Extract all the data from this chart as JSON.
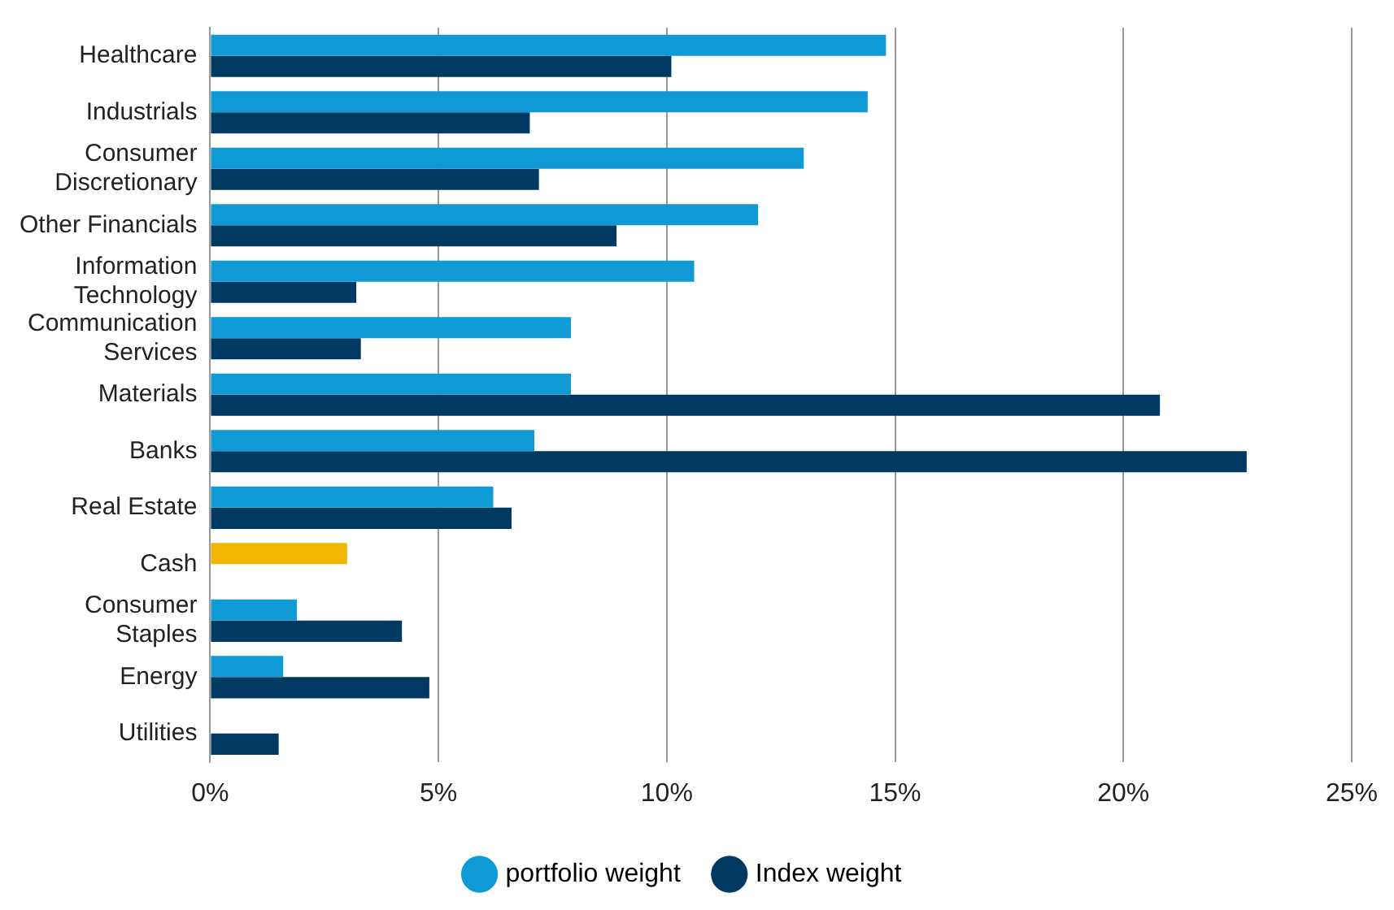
{
  "chart_data": {
    "type": "bar",
    "orientation": "horizontal",
    "categories": [
      "Healthcare",
      "Industrials",
      "Consumer Discretionary",
      "Other Financials",
      "Information Technology",
      "Communication Services",
      "Materials",
      "Banks",
      "Real Estate",
      "Cash",
      "Consumer Staples",
      "Energy",
      "Utilities"
    ],
    "series": [
      {
        "name": "portfolio weight",
        "color": "#0f9ad6",
        "colors": [
          "#0f9ad6",
          "#0f9ad6",
          "#0f9ad6",
          "#0f9ad6",
          "#0f9ad6",
          "#0f9ad6",
          "#0f9ad6",
          "#0f9ad6",
          "#0f9ad6",
          "#f2b705",
          "#0f9ad6",
          "#0f9ad6",
          "#0f9ad6"
        ],
        "values": [
          14.8,
          14.4,
          13.0,
          12.0,
          10.6,
          7.9,
          7.9,
          7.1,
          6.2,
          3.0,
          1.9,
          1.6,
          null
        ]
      },
      {
        "name": "Index weight",
        "color": "#003a63",
        "values": [
          10.1,
          7.0,
          7.2,
          8.9,
          3.2,
          3.3,
          20.8,
          22.7,
          6.6,
          null,
          4.2,
          4.8,
          1.5
        ]
      }
    ],
    "xlim": [
      0,
      25
    ],
    "xticks": [
      {
        "value": 0,
        "label": "0%"
      },
      {
        "value": 5,
        "label": "5%"
      },
      {
        "value": 10,
        "label": "10%"
      },
      {
        "value": 15,
        "label": "15%"
      },
      {
        "value": 20,
        "label": "20%"
      },
      {
        "value": 25,
        "label": "25%"
      }
    ],
    "grid": "x",
    "legend": "bottom",
    "marker": "circle"
  }
}
